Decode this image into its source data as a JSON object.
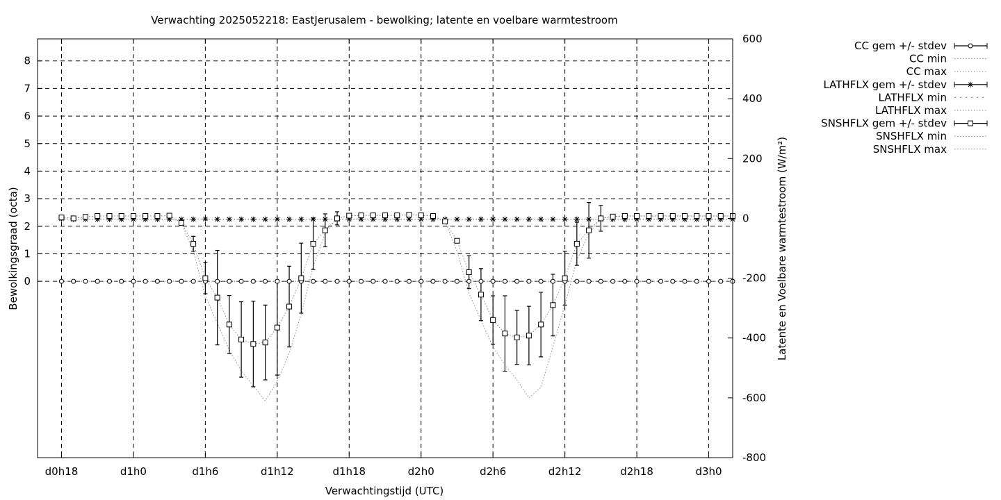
{
  "chart_data": {
    "type": "line",
    "title": "Verwachting 2025052218: EastJerusalem - bewolking; latente en voelbare warmtestroom",
    "xlabel": "Verwachtingstijd (UTC)",
    "ylabel": "Bewolkingsgraad (octa)",
    "y2label": "Latente en Voelbare warmtestroom (W/m²)",
    "x_start_hours": 18,
    "x_step_hours": 1,
    "xlim_hours": [
      16,
      74
    ],
    "x_tick_labels": [
      "d0h18",
      "d1h0",
      "d1h6",
      "d1h12",
      "d1h18",
      "d2h0",
      "d2h6",
      "d2h12",
      "d2h18",
      "d3h0"
    ],
    "ylim": [
      -6.4,
      8.8
    ],
    "y_ticks": [
      0,
      1,
      2,
      3,
      4,
      5,
      6,
      7,
      8
    ],
    "y2lim": [
      -800,
      600
    ],
    "y2_ticks": [
      -800,
      -600,
      -400,
      -200,
      0,
      200,
      400,
      600
    ],
    "grid": true,
    "legend_position": "outside-right",
    "series": [
      {
        "name": "CC gem +/- stdev",
        "axis": "left",
        "marker": "circle",
        "values": [
          0,
          0,
          0,
          0,
          0,
          0,
          0,
          0,
          0,
          0,
          0,
          0,
          0,
          0,
          0,
          0,
          0,
          0,
          0,
          0,
          0,
          0,
          0,
          0,
          0,
          0,
          0,
          0,
          0,
          0,
          0,
          0,
          0,
          0,
          0,
          0,
          0,
          0,
          0,
          0,
          0,
          0,
          0,
          0,
          0,
          0,
          0,
          0,
          0,
          0,
          0,
          0,
          0,
          0,
          0,
          0,
          0
        ],
        "stdev": [
          0,
          0,
          0,
          0,
          0,
          0,
          0,
          0,
          0,
          0,
          0,
          0,
          0,
          0,
          0,
          0,
          0,
          0,
          0,
          0,
          0,
          0,
          0,
          0,
          0,
          0,
          0,
          0,
          0,
          0,
          0,
          0,
          0,
          0,
          0,
          0,
          0,
          0,
          0,
          0,
          0,
          0,
          0,
          0,
          0,
          0,
          0,
          0,
          0,
          0,
          0,
          0,
          0,
          0,
          0,
          0,
          0
        ]
      },
      {
        "name": "CC min",
        "axis": "left",
        "style": "dotted",
        "values": [
          0,
          0,
          0,
          0,
          0,
          0,
          0,
          0,
          0,
          0,
          0,
          0,
          0,
          0,
          0,
          0,
          0,
          0,
          0,
          0,
          0,
          0,
          0,
          0,
          0,
          0,
          0,
          0,
          0,
          0,
          0,
          0,
          0,
          0,
          0,
          0,
          0,
          0,
          0,
          0,
          0,
          0,
          0,
          0,
          0,
          0,
          0,
          0,
          0,
          0,
          0,
          0,
          0,
          0,
          0,
          0,
          0
        ]
      },
      {
        "name": "CC max",
        "axis": "left",
        "style": "dotted",
        "values": [
          0,
          0,
          0,
          0,
          0,
          0,
          0,
          0,
          0,
          0,
          0,
          0,
          0,
          0,
          0,
          0,
          0,
          0,
          0,
          0,
          0,
          0,
          0,
          0,
          0,
          0,
          0,
          0,
          0,
          0,
          0,
          0,
          0,
          0,
          0,
          0,
          0,
          0,
          0,
          0,
          0,
          0,
          0,
          0,
          0,
          0,
          0,
          0,
          0,
          0,
          0,
          0,
          0,
          0,
          0,
          0,
          0
        ]
      },
      {
        "name": "LATHFLX gem +/- stdev",
        "axis": "right",
        "marker": "star",
        "values": [
          -2,
          -3,
          -3,
          -3,
          -3,
          -3,
          -3,
          -3,
          -3,
          -3,
          -3,
          -3,
          -2,
          -3,
          -3,
          -3,
          -3,
          -3,
          -3,
          -3,
          -3,
          -3,
          -3,
          -3,
          -3,
          -3,
          -3,
          -3,
          -3,
          -3,
          -3,
          -3,
          -3,
          -3,
          -3,
          -3,
          -3,
          -3,
          -3,
          -3,
          -3,
          -3,
          -3,
          -3,
          -3,
          -3,
          -3,
          -3,
          -3,
          -3,
          -3,
          -3,
          -3,
          -3,
          -3,
          -3,
          -3
        ],
        "stdev": [
          0,
          0,
          0,
          0,
          0,
          0,
          0,
          0,
          0,
          0,
          0,
          0,
          0,
          0,
          0,
          0,
          0,
          0,
          0,
          0,
          0,
          0,
          0,
          0,
          0,
          0,
          0,
          0,
          0,
          0,
          0,
          0,
          0,
          0,
          0,
          0,
          0,
          0,
          0,
          0,
          0,
          0,
          0,
          0,
          0,
          0,
          0,
          0,
          0,
          0,
          0,
          0,
          0,
          0,
          0,
          0,
          0
        ]
      },
      {
        "name": "LATHFLX min",
        "axis": "right",
        "style": "dotted",
        "values": [
          -2,
          -3,
          -3,
          -3,
          -3,
          -3,
          -3,
          -3,
          -3,
          -3,
          -3,
          -3,
          -2,
          -3,
          -3,
          -3,
          -3,
          -3,
          -3,
          -3,
          -3,
          -3,
          -3,
          -3,
          -3,
          -3,
          -3,
          -3,
          -3,
          -3,
          -3,
          -3,
          -3,
          -3,
          -3,
          -3,
          -3,
          -3,
          -3,
          -3,
          -3,
          -3,
          -3,
          -3,
          -3,
          -3,
          -3,
          -3,
          -3,
          -3,
          -3,
          -3,
          -3,
          -3,
          -3,
          -3,
          -3
        ]
      },
      {
        "name": "LATHFLX max",
        "axis": "right",
        "style": "dotted",
        "values": [
          -2,
          -3,
          -3,
          -3,
          -3,
          -3,
          -3,
          -3,
          -3,
          -3,
          -3,
          -3,
          -2,
          -3,
          -3,
          -3,
          -3,
          -3,
          -3,
          -3,
          -3,
          -3,
          -3,
          -3,
          -3,
          -3,
          -3,
          -3,
          -3,
          -3,
          -3,
          -3,
          -3,
          -3,
          -3,
          -3,
          -3,
          -3,
          -3,
          -3,
          -3,
          -3,
          -3,
          -3,
          -3,
          -3,
          -3,
          -3,
          -3,
          -3,
          -3,
          -3,
          -3,
          -3,
          -3,
          -3,
          -3
        ]
      },
      {
        "name": "SNSHFLX gem +/- stdev",
        "axis": "right",
        "marker": "square",
        "values": [
          3,
          0,
          5,
          8,
          8,
          8,
          8,
          8,
          8,
          9,
          -15,
          -85,
          -200,
          -265,
          -355,
          -405,
          -420,
          -415,
          -365,
          -295,
          -200,
          -85,
          -40,
          0,
          9,
          10,
          10,
          10,
          10,
          12,
          10,
          8,
          -10,
          -75,
          -180,
          -255,
          -340,
          -385,
          -398,
          -392,
          -355,
          -290,
          -200,
          -85,
          -40,
          0,
          6,
          8,
          8,
          8,
          8,
          8,
          8,
          8,
          8,
          8,
          8
        ],
        "stdev": [
          0,
          0,
          0,
          0,
          0,
          0,
          0,
          0,
          0,
          0,
          0,
          25,
          52,
          158,
          97,
          126,
          143,
          125,
          159,
          135,
          117,
          86,
          55,
          22,
          0,
          0,
          0,
          0,
          0,
          0,
          0,
          0,
          0,
          0,
          55,
          87,
          81,
          126,
          90,
          98,
          108,
          103,
          90,
          72,
          93,
          43,
          0,
          0,
          0,
          0,
          0,
          0,
          0,
          0,
          0,
          0,
          0
        ]
      },
      {
        "name": "SNSHFLX min",
        "axis": "right",
        "style": "dotted",
        "values": [
          3,
          0,
          5,
          8,
          8,
          8,
          8,
          8,
          8,
          9,
          -15,
          -110,
          -260,
          -350,
          -440,
          -510,
          -560,
          -610,
          -545,
          -450,
          -320,
          -160,
          -50,
          0,
          9,
          10,
          10,
          10,
          10,
          12,
          10,
          8,
          -10,
          -110,
          -250,
          -340,
          -430,
          -490,
          -540,
          -600,
          -565,
          -430,
          -290,
          -140,
          -50,
          0,
          6,
          8,
          8,
          8,
          8,
          8,
          8,
          8,
          8,
          8,
          8
        ]
      },
      {
        "name": "SNSHFLX max",
        "axis": "right",
        "style": "dotted",
        "values": [
          3,
          0,
          5,
          8,
          8,
          8,
          8,
          8,
          8,
          9,
          -15,
          -85,
          -200,
          -265,
          -355,
          -405,
          -420,
          -415,
          -365,
          -295,
          -200,
          -85,
          -40,
          0,
          9,
          10,
          10,
          10,
          10,
          12,
          10,
          8,
          -10,
          -75,
          -180,
          -255,
          -340,
          -385,
          -398,
          -392,
          -355,
          -290,
          -200,
          -85,
          -40,
          0,
          6,
          8,
          8,
          8,
          8,
          8,
          8,
          8,
          8,
          8,
          8
        ]
      }
    ]
  }
}
